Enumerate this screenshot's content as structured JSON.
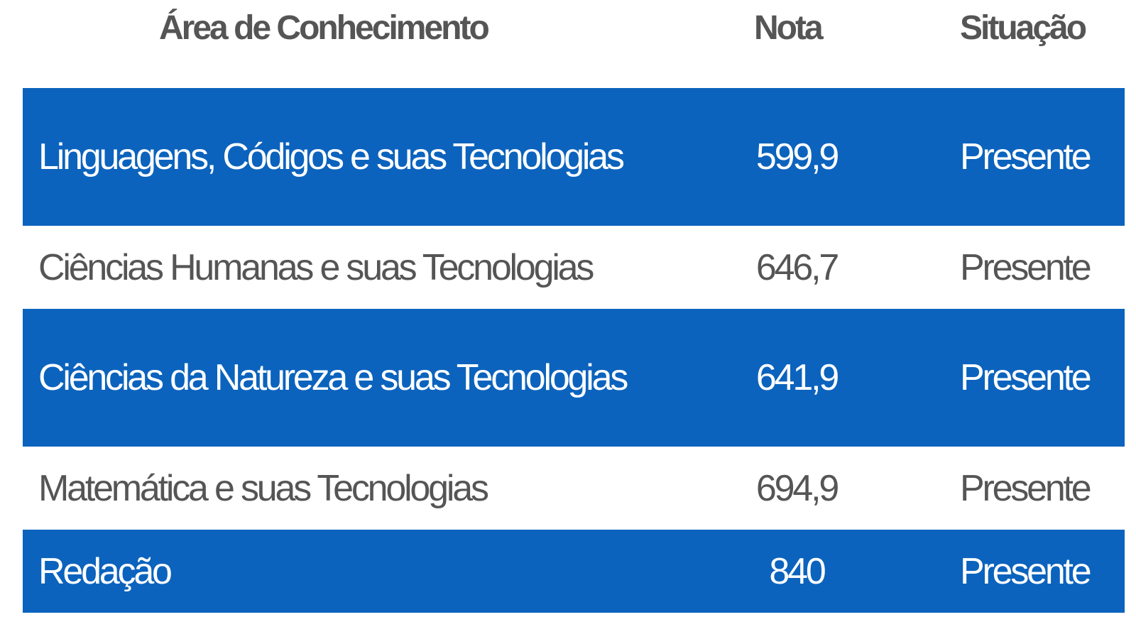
{
  "table": {
    "headers": {
      "area": "Área de Conhecimento",
      "nota": "Nota",
      "situacao": "Situação"
    },
    "rows": [
      {
        "area": "Linguagens, Códigos e suas Tecnologias",
        "nota": "599,9",
        "situacao": "Presente"
      },
      {
        "area": "Ciências Humanas e suas Tecnologias",
        "nota": "646,7",
        "situacao": "Presente"
      },
      {
        "area": "Ciências da Natureza e suas Tecnologias",
        "nota": "641,9",
        "situacao": "Presente"
      },
      {
        "area": "Matemática e suas Tecnologias",
        "nota": "694,9",
        "situacao": "Presente"
      },
      {
        "area": "Redação",
        "nota": "840",
        "situacao": "Presente"
      }
    ]
  },
  "colors": {
    "highlight_row": "#0b63bd",
    "text_dark": "#555555",
    "text_light": "#ffffff"
  }
}
